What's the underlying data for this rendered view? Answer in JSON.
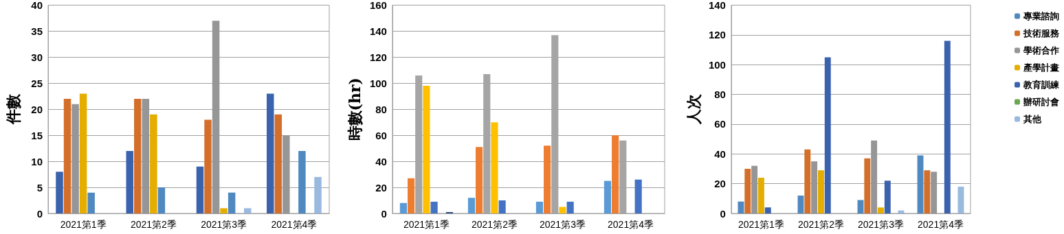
{
  "chart_data": [
    {
      "type": "bar",
      "ylabel": "件數",
      "categories": [
        "2021第1季",
        "2021第2季",
        "2021第3季",
        "2021第4季"
      ],
      "ylim": [
        0,
        40
      ],
      "yticks": [
        0,
        5,
        10,
        15,
        20,
        25,
        30,
        35,
        40
      ],
      "grid": "y",
      "legend": false,
      "series": [
        {
          "color": "#3a62ad",
          "values": [
            8,
            12,
            9,
            23
          ]
        },
        {
          "color": "#d46f2b",
          "values": [
            22,
            22,
            18,
            19
          ]
        },
        {
          "color": "#969696",
          "values": [
            21,
            22,
            37,
            15
          ]
        },
        {
          "color": "#e4ad00",
          "values": [
            23,
            19,
            1,
            null
          ]
        },
        {
          "color": "#4f89c0",
          "values": [
            4,
            5,
            4,
            12
          ]
        },
        {
          "values": [
            null,
            null,
            null,
            null
          ]
        },
        {
          "color": "#9ab9df",
          "values": [
            null,
            null,
            1,
            7
          ]
        }
      ]
    },
    {
      "type": "bar",
      "ylabel": "時數(hr)",
      "categories": [
        "2021第1季",
        "2021第2季",
        "2021第3季",
        "2021第4季"
      ],
      "ylim": [
        0,
        160
      ],
      "yticks": [
        0,
        20,
        40,
        60,
        80,
        100,
        120,
        140,
        160
      ],
      "grid": "y",
      "legend": false,
      "series": [
        {
          "color": "#5b9bd5",
          "values": [
            8,
            12,
            9,
            25
          ]
        },
        {
          "color": "#ed7d31",
          "values": [
            27,
            51,
            52,
            60
          ]
        },
        {
          "color": "#a5a5a5",
          "values": [
            106,
            107,
            137,
            56
          ]
        },
        {
          "color": "#ffc000",
          "values": [
            98,
            70,
            5,
            null
          ]
        },
        {
          "color": "#4472c4",
          "values": [
            9,
            10,
            9,
            26
          ]
        },
        {
          "values": [
            null,
            null,
            null,
            null
          ]
        },
        {
          "color": "#264478",
          "values": [
            1,
            null,
            null,
            null
          ]
        }
      ]
    },
    {
      "type": "bar",
      "ylabel": "人次",
      "categories": [
        "2021第1季",
        "2021第2季",
        "2021第3季",
        "2021第4季"
      ],
      "ylim": [
        0,
        140
      ],
      "yticks": [
        0,
        20,
        40,
        60,
        80,
        100,
        120,
        140
      ],
      "grid": "y",
      "legend": "right",
      "series": [
        {
          "name": "專業諮詢",
          "color": "#4f89c0",
          "values": [
            8,
            12,
            9,
            39
          ]
        },
        {
          "name": "技術服務",
          "color": "#d46f2b",
          "values": [
            30,
            43,
            37,
            29
          ]
        },
        {
          "name": "學術合作",
          "color": "#969696",
          "values": [
            32,
            35,
            49,
            28
          ]
        },
        {
          "name": "產學計畫",
          "color": "#e4ad00",
          "values": [
            24,
            29,
            4,
            null
          ]
        },
        {
          "name": "教育訓練",
          "color": "#3a62ad",
          "values": [
            4,
            105,
            22,
            116
          ]
        },
        {
          "name": "辦研討會",
          "color": "#6aa84f",
          "values": [
            null,
            null,
            null,
            null
          ]
        },
        {
          "name": "其他",
          "color": "#9ab9df",
          "values": [
            null,
            null,
            2,
            18
          ]
        }
      ]
    }
  ]
}
